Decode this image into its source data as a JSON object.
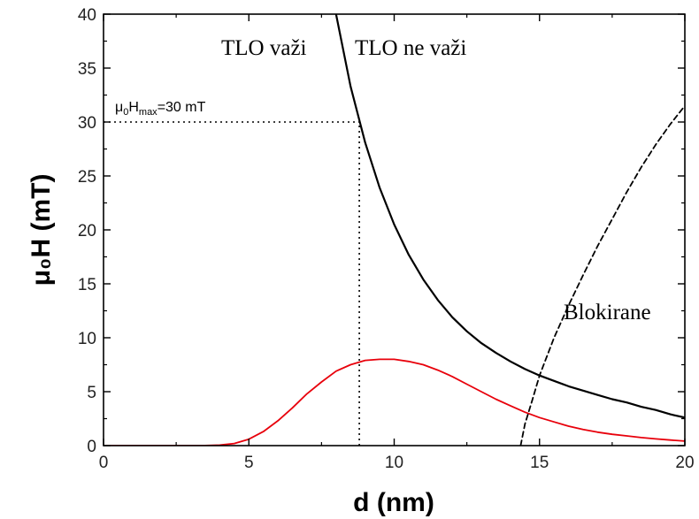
{
  "chart_data": {
    "type": "line",
    "xlabel": "d (nm)",
    "ylabel": "μ₀H (mT)",
    "xlim": [
      0,
      20
    ],
    "ylim": [
      0,
      40
    ],
    "xticks": [
      0,
      5,
      10,
      15,
      20
    ],
    "yticks": [
      0,
      5,
      10,
      15,
      20,
      25,
      30,
      35,
      40
    ],
    "grid": false,
    "series": [
      {
        "style": "solid",
        "color": "#000000",
        "x": [
          8.0,
          8.5,
          9.0,
          9.5,
          10,
          10.5,
          11,
          11.5,
          12,
          12.5,
          13,
          13.5,
          14,
          14.5,
          15,
          15.5,
          16,
          16.5,
          17,
          17.5,
          18,
          18.5,
          19,
          19.5,
          20
        ],
        "y": [
          40.0,
          33.3,
          28.1,
          23.9,
          20.5,
          17.7,
          15.4,
          13.5,
          11.9,
          10.6,
          9.5,
          8.6,
          7.8,
          7.1,
          6.5,
          6.0,
          5.5,
          5.1,
          4.7,
          4.3,
          4.0,
          3.6,
          3.3,
          2.9,
          2.6
        ]
      },
      {
        "style": "solid",
        "color": "#e8000b",
        "x": [
          0,
          3,
          3.5,
          4,
          4.5,
          5,
          5.5,
          6,
          6.5,
          7,
          7.5,
          8,
          8.5,
          9,
          9.5,
          10,
          10.5,
          11,
          11.5,
          12,
          12.5,
          13,
          13.5,
          14,
          14.5,
          15,
          15.5,
          16,
          16.5,
          17,
          17.5,
          18,
          18.5,
          19,
          19.5,
          20
        ],
        "y": [
          0,
          0,
          0.01,
          0.05,
          0.2,
          0.6,
          1.3,
          2.3,
          3.5,
          4.8,
          5.9,
          6.9,
          7.5,
          7.9,
          8.0,
          8.0,
          7.8,
          7.5,
          7.0,
          6.4,
          5.7,
          5.0,
          4.3,
          3.7,
          3.1,
          2.6,
          2.2,
          1.8,
          1.5,
          1.25,
          1.05,
          0.9,
          0.75,
          0.62,
          0.52,
          0.42
        ]
      },
      {
        "style": "dashed",
        "color": "#000000",
        "x": [
          14.35,
          14.5,
          14.75,
          15,
          15.5,
          16,
          16.5,
          17,
          17.5,
          18,
          18.5,
          19,
          19.5,
          20
        ],
        "y": [
          0,
          2.0,
          4.2,
          6.5,
          10.0,
          13.0,
          15.8,
          18.5,
          21.0,
          23.5,
          25.8,
          27.9,
          29.8,
          31.5
        ]
      }
    ],
    "reference_lines": [
      {
        "orientation": "horizontal",
        "y": 30,
        "x_from": 0,
        "x_to": 8.8,
        "style": "dotted"
      },
      {
        "orientation": "vertical",
        "x": 8.8,
        "y_from": 0,
        "y_to": 30,
        "style": "dotted"
      }
    ],
    "annotations": {
      "tlo_valid": "TLO važi",
      "tlo_invalid": "TLO ne važi",
      "blocked": "Blokirane",
      "hmax_prefix": "μ",
      "hmax_sub0": "0",
      "hmax_H": "H",
      "hmax_submax": "max",
      "hmax_suffix": "=30 mT"
    }
  }
}
